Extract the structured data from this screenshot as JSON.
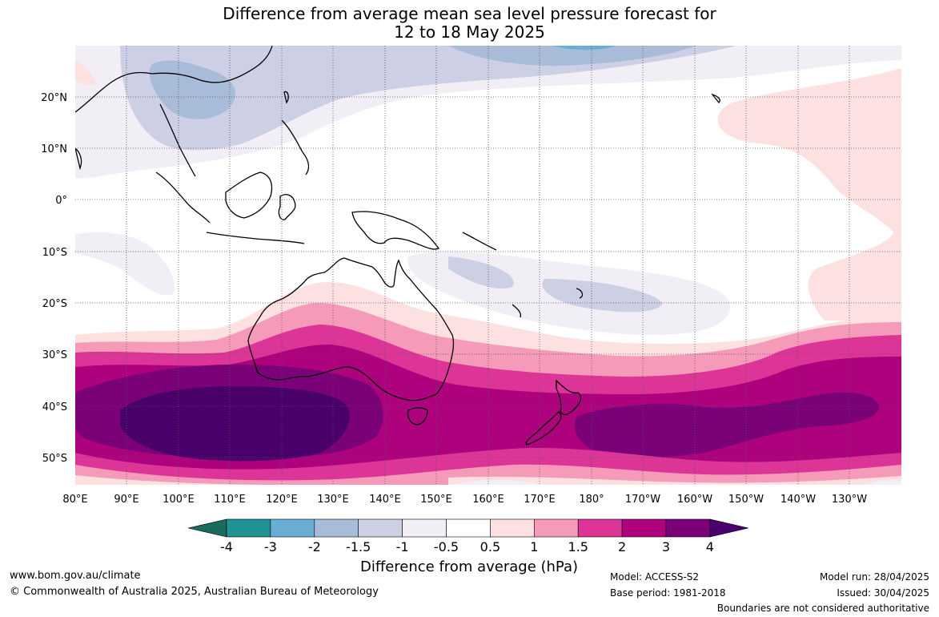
{
  "title_line1": "Difference from average mean sea level pressure forecast for",
  "title_line2": "12 to 18 May 2025",
  "lon_labels": [
    "80°E",
    "90°E",
    "100°E",
    "110°E",
    "120°E",
    "130°E",
    "140°E",
    "150°E",
    "160°E",
    "170°E",
    "180°",
    "170°W",
    "160°W",
    "150°W",
    "140°W",
    "130°W"
  ],
  "lat_labels": [
    "20°N",
    "10°N",
    "0°",
    "10°S",
    "20°S",
    "30°S",
    "40°S",
    "50°S"
  ],
  "colorbar": {
    "label": "Difference from average (hPa)",
    "ticks": [
      "-4",
      "-3",
      "-2",
      "-1.5",
      "-1",
      "-0.5",
      "0.5",
      "1",
      "1.5",
      "2",
      "3",
      "4"
    ],
    "colors": [
      "#1a6b5e",
      "#1f9396",
      "#6aaed6",
      "#a8bbd9",
      "#cdd0e5",
      "#f1eef6",
      "#ffffff",
      "#fde0e0",
      "#f59ab9",
      "#dd3497",
      "#ae017e",
      "#7a0177",
      "#49006a"
    ]
  },
  "footer": {
    "website": "www.bom.gov.au/climate",
    "copyright": "© Commonwealth of Australia 2025, Australian Bureau of Meteorology",
    "model": "Model: ACCESS-S2",
    "base_period": "Base period: 1981-2018",
    "model_run": "Model run: 28/04/2025",
    "issued": "Issued: 30/04/2025",
    "disclaimer": "Boundaries are not considered authoritative"
  }
}
